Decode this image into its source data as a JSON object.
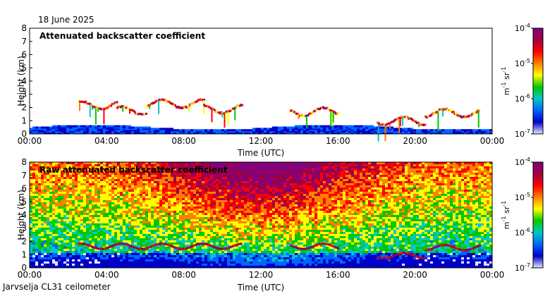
{
  "page": {
    "date": "18 June 2025",
    "footer": "Jarvselja CL31 ceilometer"
  },
  "chart_data": [
    {
      "type": "heatmap",
      "title": "Attenuated backscatter coefficient",
      "xlabel": "Time (UTC)",
      "ylabel": "Height (km)",
      "x_ticks": [
        "00:00",
        "04:00",
        "08:00",
        "12:00",
        "16:00",
        "20:00",
        "00:00"
      ],
      "xlim_hours": [
        0,
        24
      ],
      "y_ticks": [
        "0",
        "1",
        "2",
        "3",
        "4",
        "5",
        "6",
        "7",
        "8"
      ],
      "ylim": [
        0,
        8
      ],
      "colorbar": {
        "ticks": [
          "10",
          "10",
          "10",
          "10"
        ],
        "exponents": [
          "-7",
          "-6",
          "-5",
          "-4"
        ],
        "unit": "m",
        "unit_exp1": "-1",
        "unit2": " sr",
        "unit_exp2": "-1",
        "range": [
          1e-07,
          0.0001
        ],
        "scale": "log"
      },
      "background_layer_height_km": 0.4,
      "cloud_layers": [
        {
          "start_h": 2.5,
          "end_h": 4.5,
          "height_km": 2.1
        },
        {
          "start_h": 4.5,
          "end_h": 6.0,
          "height_km": 1.7
        },
        {
          "start_h": 6.0,
          "end_h": 9.0,
          "height_km": 2.2
        },
        {
          "start_h": 9.0,
          "end_h": 11.0,
          "height_km": 1.8
        },
        {
          "start_h": 13.5,
          "end_h": 16.0,
          "height_km": 1.6
        },
        {
          "start_h": 18.0,
          "end_h": 20.5,
          "height_km": 0.9
        },
        {
          "start_h": 20.5,
          "end_h": 23.3,
          "height_km": 1.5
        }
      ]
    },
    {
      "type": "heatmap",
      "title": "Raw attenuated backscatter coefficient",
      "xlabel": "Time (UTC)",
      "ylabel": "Height (km)",
      "x_ticks": [
        "00:00",
        "04:00",
        "08:00",
        "12:00",
        "16:00",
        "20:00",
        "00:00"
      ],
      "xlim_hours": [
        0,
        24
      ],
      "y_ticks": [
        "0",
        "1",
        "2",
        "3",
        "4",
        "5",
        "6",
        "7",
        "8"
      ],
      "ylim": [
        0,
        8
      ],
      "colorbar": {
        "ticks": [
          "10",
          "10",
          "10",
          "10"
        ],
        "exponents": [
          "-7",
          "-6",
          "-5",
          "-4"
        ],
        "unit": "m",
        "unit_exp1": "-1",
        "unit2": " sr",
        "unit_exp2": "-1",
        "range": [
          1e-07,
          0.0001
        ],
        "scale": "log"
      }
    }
  ],
  "colors": {
    "scale": [
      "#e6e6ff",
      "#0000c8",
      "#0064ff",
      "#00c8c8",
      "#00c800",
      "#ffff00",
      "#ff8000",
      "#ff0000",
      "#a00040",
      "#800080"
    ]
  }
}
